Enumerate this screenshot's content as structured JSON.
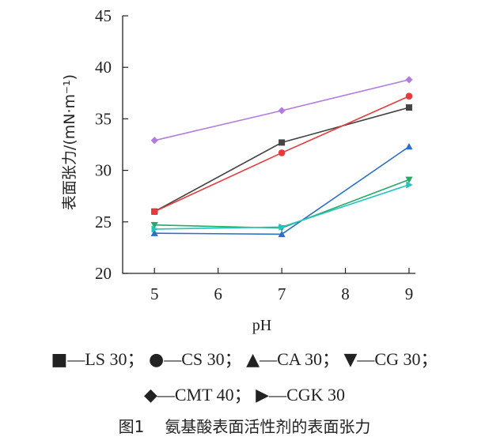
{
  "chart_data": {
    "type": "line",
    "xlabel": "pH",
    "ylabel": "表面张力/(mN·m⁻¹)",
    "x_ticks": [
      5,
      6,
      7,
      8,
      9
    ],
    "y_ticks": [
      20,
      25,
      30,
      35,
      40,
      45
    ],
    "xlim": [
      4.5,
      9.1
    ],
    "ylim": [
      20,
      45
    ],
    "grid": false,
    "x": [
      5,
      7,
      9
    ],
    "series": [
      {
        "name": "LS 30",
        "marker": "square",
        "color": "#444444",
        "values": [
          26.0,
          32.7,
          36.1
        ]
      },
      {
        "name": "CS 30",
        "marker": "circle",
        "color": "#e8393b",
        "values": [
          26.0,
          31.7,
          37.2
        ]
      },
      {
        "name": "CA 30",
        "marker": "triangle-up",
        "color": "#2a6fc9",
        "values": [
          23.9,
          23.8,
          32.3
        ]
      },
      {
        "name": "CG 30",
        "marker": "triangle-down",
        "color": "#2aa86a",
        "values": [
          24.7,
          24.4,
          29.1
        ]
      },
      {
        "name": "CMT 40",
        "marker": "diamond",
        "color": "#b07ce0",
        "values": [
          32.9,
          35.8,
          38.8
        ]
      },
      {
        "name": "CGK 30",
        "marker": "triangle-right",
        "color": "#22c4c0",
        "values": [
          24.3,
          24.5,
          28.6
        ]
      }
    ],
    "legend_placement": "bottom"
  },
  "legend": {
    "row1": [
      {
        "symbol": "■",
        "label": "—LS 30",
        "sep": "；"
      },
      {
        "symbol": "●",
        "label": "—CS 30",
        "sep": "；"
      },
      {
        "symbol": "▲",
        "label": "—CA 30",
        "sep": "；"
      },
      {
        "symbol": "▼",
        "label": "—CG 30",
        "sep": "；"
      }
    ],
    "row2": [
      {
        "symbol": "◆",
        "label": "—CMT 40",
        "sep": "；"
      },
      {
        "symbol": "▶",
        "label": "—CGK 30",
        "sep": ""
      }
    ]
  },
  "caption": {
    "number": "图1",
    "text": "氨基酸表面活性剂的表面张力"
  }
}
